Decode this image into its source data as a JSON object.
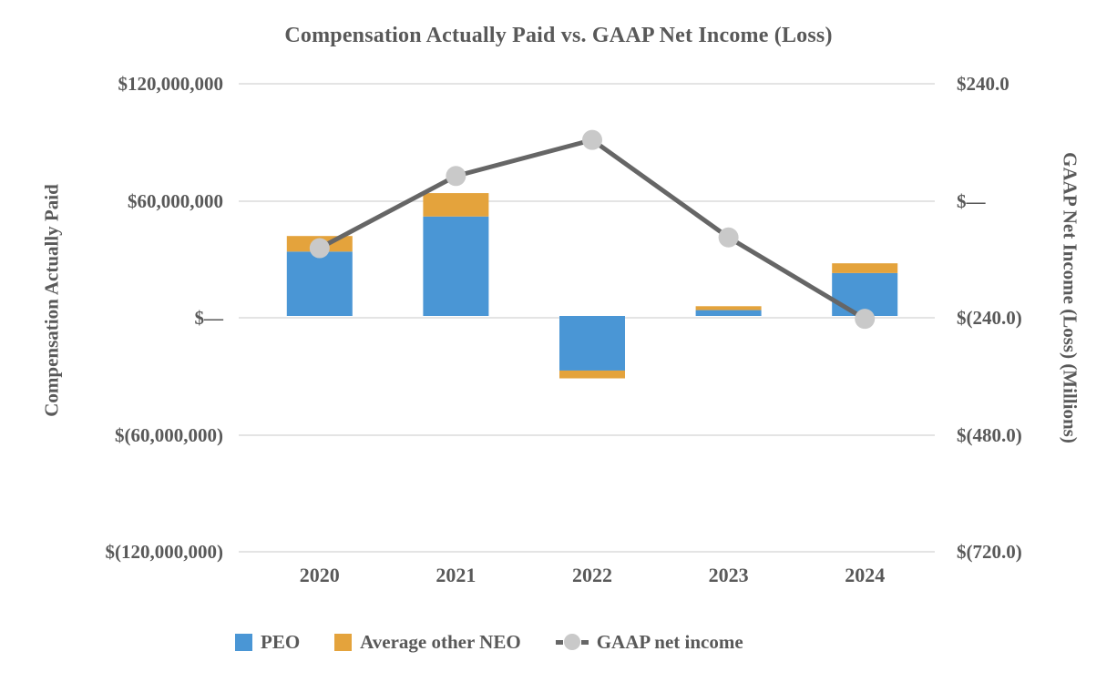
{
  "title": "Compensation Actually Paid vs. GAAP Net Income (Loss)",
  "colors": {
    "peo_bar": "#4a96d5",
    "neo_bar": "#e4a33c",
    "gaap_line": "#666666",
    "gaap_marker": "#c9c9c9",
    "gridline": "#e4e4e4",
    "text": "#595959"
  },
  "left_axis": {
    "title": "Compensation Actually Paid",
    "ticks": [
      "$120,000,000",
      "$60,000,000",
      "$—",
      "$(60,000,000)",
      "$(120,000,000)"
    ]
  },
  "right_axis": {
    "title": "GAAP Net Income (Loss) (Millions)",
    "ticks": [
      "$240.0",
      "$—",
      "$(240.0)",
      "$(480.0)",
      "$(720.0)"
    ]
  },
  "legend": [
    {
      "label": "PEO",
      "swatch": "square",
      "color_key": "peo_bar"
    },
    {
      "label": "Average other NEO",
      "swatch": "square",
      "color_key": "neo_bar"
    },
    {
      "label": "GAAP net income",
      "swatch": "line-marker",
      "color_key": "gaap_marker"
    }
  ],
  "chart_data": {
    "type": "combo-bar-line",
    "categories": [
      "2020",
      "2021",
      "2022",
      "2023",
      "2024"
    ],
    "series": [
      {
        "name": "PEO",
        "type": "bar",
        "stack": 1,
        "axis": "left",
        "values_usd": [
          33000000,
          51000000,
          -28000000,
          3000000,
          22000000
        ]
      },
      {
        "name": "Average other NEO",
        "type": "bar",
        "stack": 1,
        "axis": "left",
        "values_usd": [
          8000000,
          12000000,
          -4000000,
          2000000,
          5000000
        ]
      },
      {
        "name": "GAAP net income",
        "type": "line",
        "axis": "right",
        "values_millions": [
          -100,
          48,
          122,
          -78,
          -245
        ]
      }
    ],
    "left_ylim_usd": [
      -120000000,
      120000000
    ],
    "left_tick_step_usd": 60000000,
    "right_ylim_millions": [
      -720,
      240
    ],
    "right_tick_step_millions": 240,
    "grid": true,
    "legend_position": "bottom"
  }
}
